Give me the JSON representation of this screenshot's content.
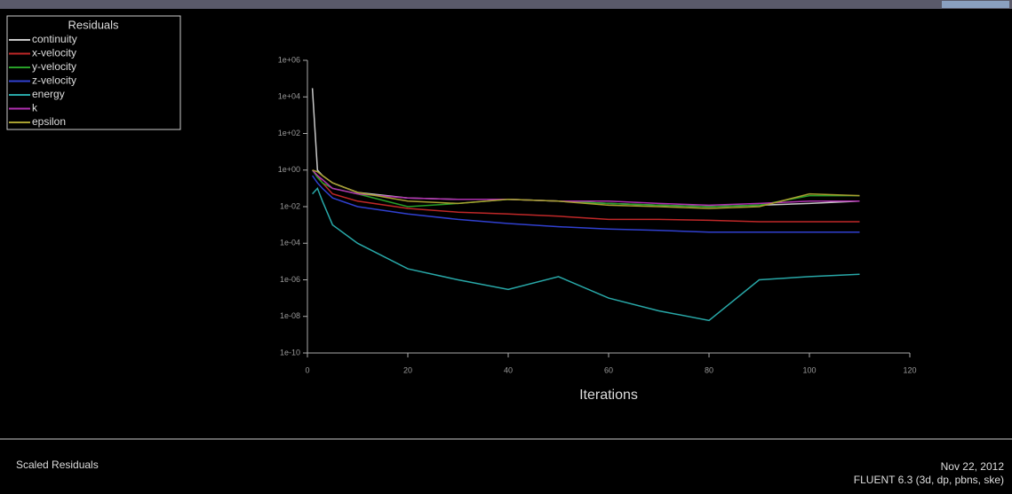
{
  "chart_data": {
    "type": "line",
    "log_y": true,
    "grid": false,
    "legend_title": "Residuals",
    "xlabel": "Iterations",
    "x": [
      1,
      2,
      3,
      5,
      10,
      20,
      30,
      40,
      50,
      60,
      70,
      80,
      90,
      100,
      110
    ],
    "xlim": [
      0,
      120
    ],
    "xticks": [
      0,
      20,
      40,
      60,
      80,
      100,
      120
    ],
    "ylim": [
      1e-10,
      1000000
    ],
    "yticks": [
      {
        "value": 1e-10,
        "label": "1e-10"
      },
      {
        "value": 1e-08,
        "label": "1e-08"
      },
      {
        "value": 1e-06,
        "label": "1e-06"
      },
      {
        "value": 0.0001,
        "label": "1e-04"
      },
      {
        "value": 0.01,
        "label": "1e-02"
      },
      {
        "value": 1,
        "label": "1e+00"
      },
      {
        "value": 100,
        "label": "1e+02"
      },
      {
        "value": 10000,
        "label": "1e+04"
      },
      {
        "value": 1000000,
        "label": "1e+06"
      }
    ],
    "series": [
      {
        "name": "continuity",
        "color": "#c8c8c8",
        "values": [
          30000,
          1,
          0.5,
          0.2,
          0.06,
          0.03,
          0.025,
          0.025,
          0.02,
          0.015,
          0.012,
          0.01,
          0.012,
          0.015,
          0.02
        ]
      },
      {
        "name": "x-velocity",
        "color": "#c02828",
        "values": [
          1,
          0.5,
          0.2,
          0.05,
          0.02,
          0.008,
          0.005,
          0.004,
          0.003,
          0.002,
          0.002,
          0.0018,
          0.0015,
          0.0015,
          0.0015
        ]
      },
      {
        "name": "y-velocity",
        "color": "#28a028",
        "values": [
          1,
          0.4,
          0.2,
          0.1,
          0.05,
          0.01,
          0.015,
          0.025,
          0.02,
          0.015,
          0.012,
          0.01,
          0.012,
          0.04,
          0.04
        ]
      },
      {
        "name": "z-velocity",
        "color": "#3040d0",
        "values": [
          0.5,
          0.2,
          0.1,
          0.03,
          0.01,
          0.004,
          0.002,
          0.0012,
          0.0008,
          0.0006,
          0.0005,
          0.0004,
          0.0004,
          0.0004,
          0.0004
        ]
      },
      {
        "name": "energy",
        "color": "#28a8a8",
        "values": [
          0.05,
          0.1,
          0.02,
          0.001,
          0.0001,
          4e-06,
          1e-06,
          3e-07,
          1.5e-06,
          1e-07,
          2e-08,
          6e-09,
          1e-06,
          1.5e-06,
          2e-06
        ]
      },
      {
        "name": "k",
        "color": "#b030b0",
        "values": [
          1,
          0.5,
          0.3,
          0.1,
          0.05,
          0.03,
          0.025,
          0.025,
          0.02,
          0.02,
          0.015,
          0.012,
          0.015,
          0.02,
          0.02
        ]
      },
      {
        "name": "epsilon",
        "color": "#a8a030",
        "values": [
          1,
          0.8,
          0.5,
          0.2,
          0.06,
          0.02,
          0.015,
          0.025,
          0.02,
          0.012,
          0.01,
          0.008,
          0.01,
          0.05,
          0.04
        ]
      }
    ]
  },
  "footer": {
    "left": "Scaled Residuals",
    "date": "Nov 22, 2012",
    "version": "FLUENT 6.3 (3d, dp, pbns, ske)"
  }
}
